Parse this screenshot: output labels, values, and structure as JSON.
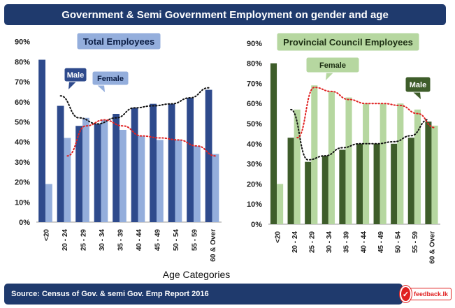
{
  "title": "Government & Semi Government Employment on gender and age",
  "source": "Source: Census of Gov. & semi Gov. Emp  Report 2016",
  "brand": "feedback.lk",
  "xlabel": "Age Categories",
  "colors": {
    "banner": "#1f3a6d",
    "left_male": "#2e4a8c",
    "left_female": "#94aedc",
    "right_male": "#3e5d2a",
    "right_female": "#b6d7a0",
    "trend_male": "#111111",
    "trend_female": "#e02020"
  },
  "chart_data": [
    {
      "type": "bar",
      "title": "Total Employees",
      "xlabel": "Age Categories",
      "ylabel": "",
      "ylim": [
        0,
        90
      ],
      "yticks": [
        "0%",
        "10%",
        "20%",
        "30%",
        "40%",
        "50%",
        "60%",
        "70%",
        "80%",
        "90%"
      ],
      "categories": [
        "<20",
        "20 - 24",
        "25 - 29",
        "30 - 34",
        "35 - 39",
        "40 - 44",
        "45 - 49",
        "50 - 54",
        "55 - 59",
        "60 & Over"
      ],
      "series": [
        {
          "name": "Male",
          "values": [
            81,
            58,
            48,
            49,
            54,
            57,
            59,
            59,
            62,
            66
          ]
        },
        {
          "name": "Female",
          "values": [
            19,
            42,
            52,
            51,
            46,
            43,
            41,
            41,
            38,
            34
          ]
        }
      ],
      "trendlines": [
        {
          "series": "Male",
          "style": "dotted",
          "values": [
            null,
            63,
            52,
            49,
            52,
            57,
            58,
            59,
            62,
            67
          ]
        },
        {
          "series": "Female",
          "style": "dotted",
          "values": [
            null,
            33,
            48,
            51,
            48,
            43,
            42,
            41,
            38,
            33
          ]
        }
      ],
      "legend": "callouts"
    },
    {
      "type": "bar",
      "title": "Provincial Council Employees",
      "xlabel": "Age Categories",
      "ylabel": "",
      "ylim": [
        0,
        90
      ],
      "yticks": [
        "0%",
        "10%",
        "20%",
        "30%",
        "40%",
        "50%",
        "60%",
        "70%",
        "80%",
        "90%"
      ],
      "categories": [
        "<20",
        "20 - 24",
        "25 - 29",
        "30 - 34",
        "35 - 39",
        "40 - 44",
        "45 - 49",
        "50 - 54",
        "55 - 59",
        "60 & Over"
      ],
      "series": [
        {
          "name": "Male",
          "values": [
            80,
            43,
            31,
            34,
            37,
            40,
            40,
            40,
            43,
            51
          ]
        },
        {
          "name": "Female",
          "values": [
            20,
            57,
            69,
            66,
            63,
            60,
            60,
            60,
            57,
            49
          ]
        }
      ],
      "trendlines": [
        {
          "series": "Male",
          "style": "dotted",
          "values": [
            null,
            57,
            32,
            34,
            38,
            40,
            40,
            41,
            44,
            52
          ]
        },
        {
          "series": "Female",
          "style": "dotted",
          "values": [
            null,
            43,
            68,
            66,
            62,
            60,
            60,
            59,
            55,
            48
          ]
        }
      ],
      "legend": "callouts"
    }
  ]
}
